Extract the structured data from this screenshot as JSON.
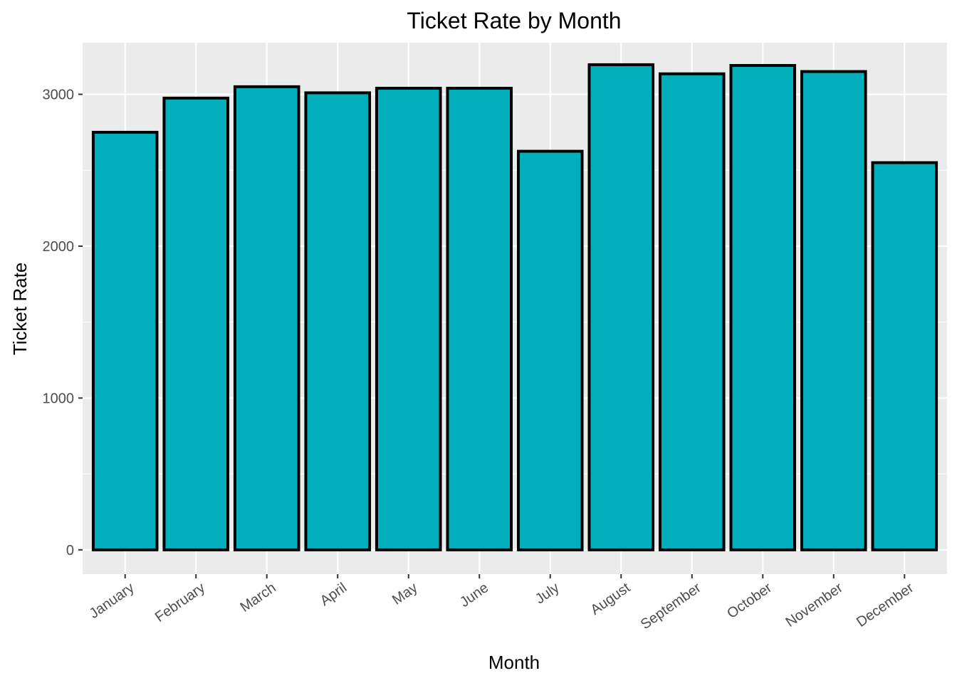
{
  "chart_data": {
    "type": "bar",
    "title": "Ticket Rate by Month",
    "xlabel": "Month",
    "ylabel": "Ticket Rate",
    "categories": [
      "January",
      "February",
      "March",
      "April",
      "May",
      "June",
      "July",
      "August",
      "September",
      "October",
      "November",
      "December"
    ],
    "values": [
      2750,
      2975,
      3050,
      3010,
      3040,
      3040,
      2625,
      3195,
      3135,
      3190,
      3150,
      2550
    ],
    "ylim": [
      -160,
      3340
    ],
    "yticks": [
      0,
      1000,
      2000,
      3000
    ],
    "ytick_labels": [
      "0",
      "1000",
      "2000",
      "3000"
    ],
    "grid": true,
    "legend": "none",
    "colors": {
      "bar_fill": "#00AEBC",
      "bar_stroke": "#000000",
      "panel_background": "#EBEBEB",
      "grid_line": "#FFFFFF"
    }
  }
}
